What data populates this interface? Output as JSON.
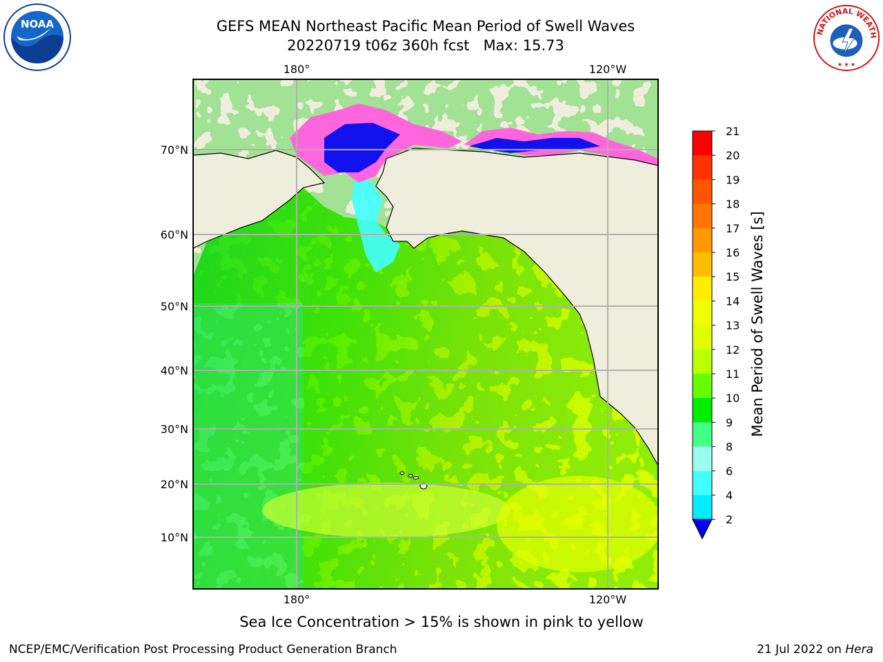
{
  "header": {
    "title_line1": "GEFS MEAN Northeast Pacific Mean Period of Swell Waves",
    "title_line2": "20220719 t06z 360h fcst   Max: 15.73"
  },
  "logos": {
    "left": {
      "icon": "noaa-logo",
      "text": "NOAA"
    },
    "right": {
      "icon": "nws-logo",
      "text": "NATIONAL WEATHER SERVICE"
    }
  },
  "map": {
    "projection": "lat-lon",
    "lon_range": [
      167,
      240
    ],
    "lat_range": [
      2,
      80
    ],
    "top_lon_labels": [
      "180°",
      "120°W"
    ],
    "bottom_lon_labels": [
      "180°",
      "120°W"
    ],
    "lat_labels": [
      "70°N",
      "60°N",
      "50°N",
      "40°N",
      "30°N",
      "20°N",
      "10°N"
    ],
    "land_color": "#efeedc",
    "grid": true
  },
  "colorbar": {
    "label": "Mean Period of Swell Waves [s]",
    "ticks": [
      "21",
      "20",
      "19",
      "18",
      "17",
      "16",
      "15",
      "14",
      "13",
      "12",
      "11",
      "10",
      "9",
      "8",
      "6",
      "4",
      "2"
    ],
    "colors": [
      "#ff0000",
      "#ff3300",
      "#ff5500",
      "#ff7700",
      "#ff9900",
      "#ffbb00",
      "#ffee00",
      "#eeff00",
      "#ddff00",
      "#bbff00",
      "#66ff00",
      "#00ee00",
      "#44ff88",
      "#99ffee",
      "#44ffff",
      "#00eeff",
      "#0077ff"
    ],
    "extend_color": "#0000ee"
  },
  "footer": {
    "note": "Sea Ice Concentration > 15% is shown in pink to yellow",
    "left": "NCEP/EMC/Verification Post Processing Product Generation Branch",
    "right_date": "21 Jul 2022 on ",
    "right_host": "Hera"
  }
}
